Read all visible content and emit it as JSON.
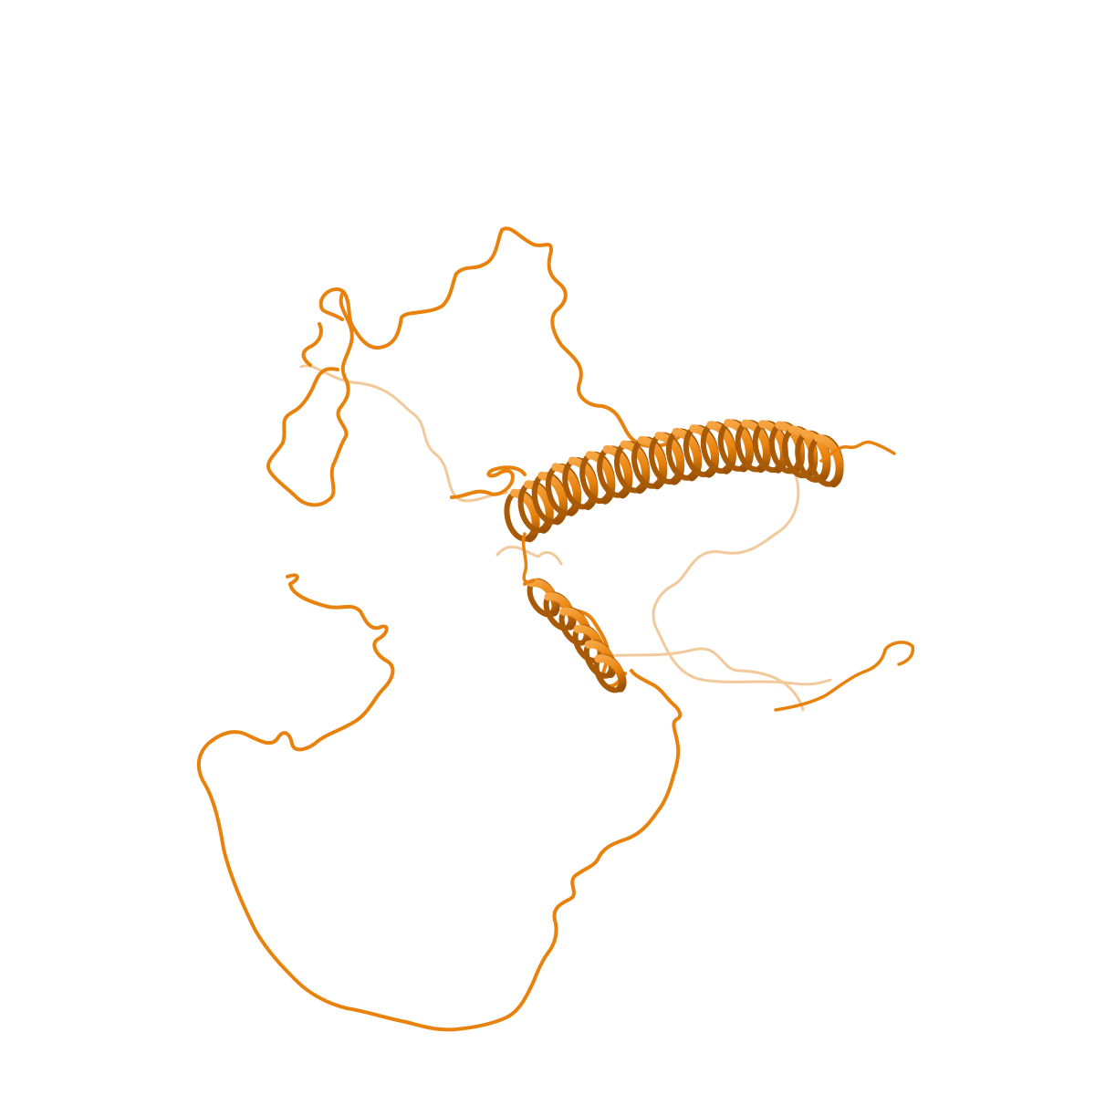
{
  "scene": {
    "background": "#ffffff",
    "subject": "protein-cartoon",
    "colors": {
      "main": "#e8820c",
      "dark": "#a85a06",
      "light": "#f5a84a",
      "faded": "#f2c792"
    }
  }
}
